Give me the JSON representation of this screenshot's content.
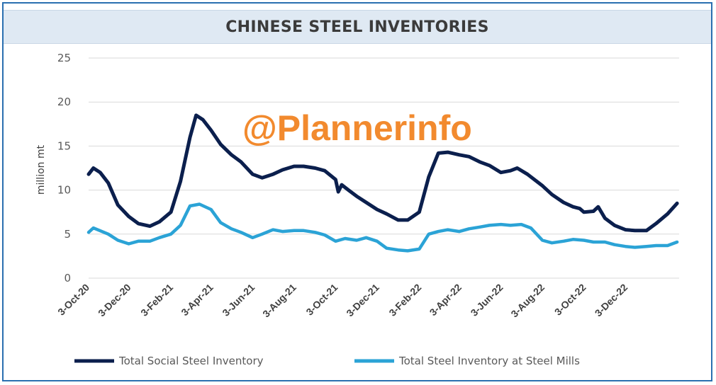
{
  "watermark": "@Plannerinfo",
  "colors": {
    "social": "#0b1f4d",
    "mills": "#2ba3d6",
    "grid": "#d9d9d9",
    "accent": "#f28a2e"
  },
  "chart_data": {
    "type": "line",
    "title": "CHINESE STEEL INVENTORIES",
    "ylabel": "million mt",
    "xlabel": "",
    "ylim": [
      0,
      25
    ],
    "yticks": [
      "0",
      "5",
      "10",
      "15",
      "20",
      "25"
    ],
    "grid": true,
    "legend_position": "bottom",
    "x_start": "2020-10-03",
    "x_end": "2023-02-18",
    "x_ticks": [
      "3-Oct-20",
      "3-Dec-20",
      "3-Feb-21",
      "3-Apr-21",
      "3-Jun-21",
      "3-Aug-21",
      "3-Oct-21",
      "3-Dec-21",
      "3-Feb-22",
      "3-Apr-22",
      "3-Jun-22",
      "3-Aug-22",
      "3-Oct-22",
      "3-Dec-22"
    ],
    "series": [
      {
        "name": "Total Social Steel Inventory",
        "color": "#0b1f4d",
        "points": [
          [
            "2020-10-03",
            11.8
          ],
          [
            "2020-10-10",
            12.5
          ],
          [
            "2020-10-20",
            12.0
          ],
          [
            "2020-11-01",
            10.8
          ],
          [
            "2020-11-15",
            8.3
          ],
          [
            "2020-12-01",
            7.0
          ],
          [
            "2020-12-15",
            6.2
          ],
          [
            "2021-01-01",
            5.9
          ],
          [
            "2021-01-15",
            6.4
          ],
          [
            "2021-02-01",
            7.5
          ],
          [
            "2021-02-15",
            11.0
          ],
          [
            "2021-03-01",
            16.0
          ],
          [
            "2021-03-10",
            18.5
          ],
          [
            "2021-03-20",
            18.0
          ],
          [
            "2021-04-01",
            16.8
          ],
          [
            "2021-04-15",
            15.2
          ],
          [
            "2021-05-01",
            14.0
          ],
          [
            "2021-05-15",
            13.2
          ],
          [
            "2021-06-01",
            11.8
          ],
          [
            "2021-06-15",
            11.4
          ],
          [
            "2021-07-01",
            11.8
          ],
          [
            "2021-07-15",
            12.3
          ],
          [
            "2021-08-01",
            12.7
          ],
          [
            "2021-08-15",
            12.7
          ],
          [
            "2021-09-01",
            12.5
          ],
          [
            "2021-09-15",
            12.2
          ],
          [
            "2021-10-01",
            11.2
          ],
          [
            "2021-10-05",
            9.8
          ],
          [
            "2021-10-10",
            10.6
          ],
          [
            "2021-10-20",
            10.0
          ],
          [
            "2021-11-01",
            9.3
          ],
          [
            "2021-11-15",
            8.6
          ],
          [
            "2021-12-01",
            7.8
          ],
          [
            "2021-12-15",
            7.3
          ],
          [
            "2022-01-01",
            6.6
          ],
          [
            "2022-01-15",
            6.6
          ],
          [
            "2022-02-01",
            7.5
          ],
          [
            "2022-02-15",
            11.5
          ],
          [
            "2022-03-01",
            14.2
          ],
          [
            "2022-03-15",
            14.3
          ],
          [
            "2022-04-01",
            14.0
          ],
          [
            "2022-04-15",
            13.8
          ],
          [
            "2022-05-01",
            13.2
          ],
          [
            "2022-05-15",
            12.8
          ],
          [
            "2022-06-01",
            12.0
          ],
          [
            "2022-06-15",
            12.2
          ],
          [
            "2022-06-25",
            12.5
          ],
          [
            "2022-07-10",
            11.8
          ],
          [
            "2022-08-01",
            10.5
          ],
          [
            "2022-08-15",
            9.5
          ],
          [
            "2022-09-01",
            8.6
          ],
          [
            "2022-09-15",
            8.1
          ],
          [
            "2022-09-25",
            7.9
          ],
          [
            "2022-10-01",
            7.5
          ],
          [
            "2022-10-15",
            7.6
          ],
          [
            "2022-10-22",
            8.1
          ],
          [
            "2022-11-01",
            6.8
          ],
          [
            "2022-11-15",
            6.0
          ],
          [
            "2022-12-01",
            5.5
          ],
          [
            "2022-12-15",
            5.4
          ],
          [
            "2023-01-01",
            5.4
          ],
          [
            "2023-01-15",
            6.2
          ],
          [
            "2023-02-01",
            7.3
          ],
          [
            "2023-02-15",
            8.5
          ]
        ]
      },
      {
        "name": "Total Steel Inventory at Steel Mills",
        "color": "#2ba3d6",
        "points": [
          [
            "2020-10-03",
            5.2
          ],
          [
            "2020-10-10",
            5.7
          ],
          [
            "2020-11-01",
            5.0
          ],
          [
            "2020-11-15",
            4.3
          ],
          [
            "2020-12-01",
            3.9
          ],
          [
            "2020-12-15",
            4.2
          ],
          [
            "2021-01-01",
            4.2
          ],
          [
            "2021-01-15",
            4.6
          ],
          [
            "2021-02-01",
            5.0
          ],
          [
            "2021-02-15",
            6.0
          ],
          [
            "2021-03-01",
            8.2
          ],
          [
            "2021-03-15",
            8.4
          ],
          [
            "2021-04-01",
            7.8
          ],
          [
            "2021-04-15",
            6.3
          ],
          [
            "2021-05-01",
            5.6
          ],
          [
            "2021-05-15",
            5.2
          ],
          [
            "2021-06-01",
            4.6
          ],
          [
            "2021-06-15",
            5.0
          ],
          [
            "2021-07-01",
            5.5
          ],
          [
            "2021-07-15",
            5.3
          ],
          [
            "2021-08-01",
            5.4
          ],
          [
            "2021-08-15",
            5.4
          ],
          [
            "2021-09-01",
            5.2
          ],
          [
            "2021-09-15",
            4.9
          ],
          [
            "2021-10-01",
            4.2
          ],
          [
            "2021-10-15",
            4.5
          ],
          [
            "2021-11-01",
            4.3
          ],
          [
            "2021-11-15",
            4.6
          ],
          [
            "2021-12-01",
            4.2
          ],
          [
            "2021-12-15",
            3.4
          ],
          [
            "2022-01-01",
            3.2
          ],
          [
            "2022-01-15",
            3.1
          ],
          [
            "2022-02-01",
            3.3
          ],
          [
            "2022-02-15",
            5.0
          ],
          [
            "2022-03-01",
            5.3
          ],
          [
            "2022-03-15",
            5.5
          ],
          [
            "2022-04-01",
            5.3
          ],
          [
            "2022-04-15",
            5.6
          ],
          [
            "2022-05-01",
            5.8
          ],
          [
            "2022-05-15",
            6.0
          ],
          [
            "2022-06-01",
            6.1
          ],
          [
            "2022-06-15",
            6.0
          ],
          [
            "2022-07-01",
            6.1
          ],
          [
            "2022-07-15",
            5.7
          ],
          [
            "2022-08-01",
            4.3
          ],
          [
            "2022-08-15",
            4.0
          ],
          [
            "2022-09-01",
            4.2
          ],
          [
            "2022-09-15",
            4.4
          ],
          [
            "2022-10-01",
            4.3
          ],
          [
            "2022-10-15",
            4.1
          ],
          [
            "2022-11-01",
            4.1
          ],
          [
            "2022-11-15",
            3.8
          ],
          [
            "2022-12-01",
            3.6
          ],
          [
            "2022-12-15",
            3.5
          ],
          [
            "2023-01-01",
            3.6
          ],
          [
            "2023-01-15",
            3.7
          ],
          [
            "2023-02-01",
            3.7
          ],
          [
            "2023-02-15",
            4.1
          ]
        ]
      }
    ]
  }
}
